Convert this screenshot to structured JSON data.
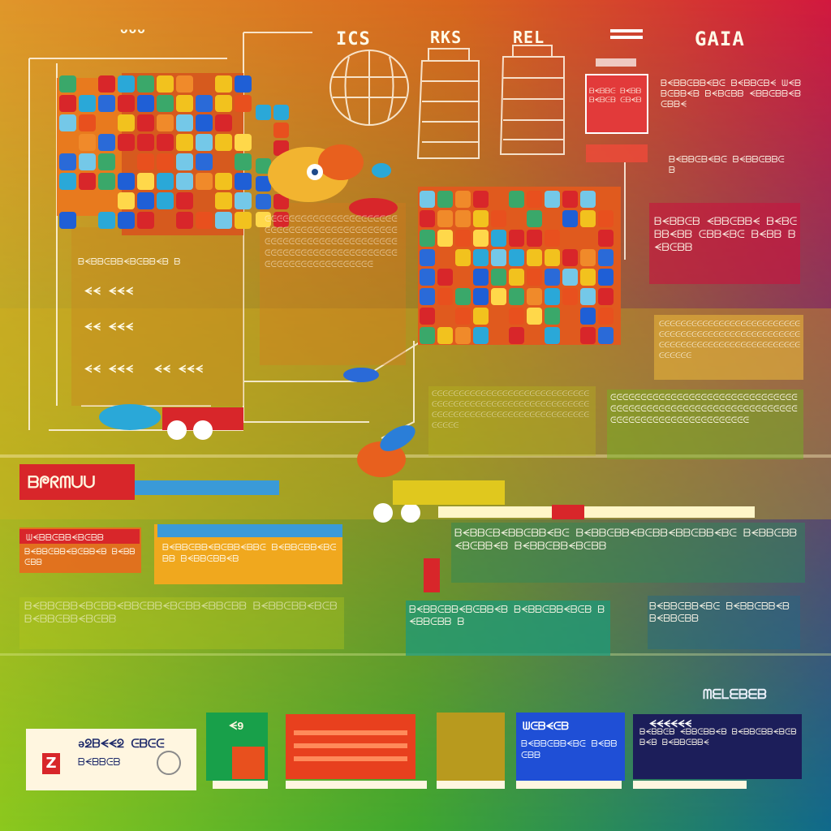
{
  "colors": {
    "gradient_top_left": "#e08a1e",
    "gradient_top_right": "#d21a3c",
    "gradient_mid": "#c9a51e",
    "gradient_bottom_left": "#7cc21e",
    "gradient_bottom_right": "#0e6a8a",
    "line_color": "#fff6e6",
    "accent_red": "#d22a2a",
    "accent_blue": "#1f5fd6",
    "accent_navy": "#1c1e5a",
    "accent_green": "#149a3a"
  },
  "header": {
    "labels": [
      "ᴗᴗᴗ",
      "ICS",
      "RKS",
      "REL",
      "GAIA"
    ]
  },
  "left_panel": {
    "row_labels": [
      "ᗕᗕ ᗕᗕᗕ",
      "ᗕᗕ ᗕᗕᗕ",
      "ᗕᗕ ᗕᗕᗕ",
      "ᗕᗕ ᗕᗕᗕ"
    ]
  },
  "bottom_cards": [
    {
      "title": "ǝᘖᗷᗕᗕᘖ ᕮᗷᕮᕮ",
      "icon": "z-badge-icon"
    },
    {
      "title": "ᗕ9",
      "icon": ""
    },
    {
      "title": "",
      "icon": ""
    },
    {
      "title": "",
      "icon": ""
    },
    {
      "title": "ᗯᕮᗷᗕᕮᗷ",
      "icon": ""
    },
    {
      "title": "ᗕᗕᗕᗕᗕᗕ",
      "icon": ""
    }
  ],
  "mid_banner": {
    "label": "ᗷᖘᖇᗰᑌᑌ"
  },
  "section_label": "ᗰᗴᒪᗴᗷᗴᗷ"
}
